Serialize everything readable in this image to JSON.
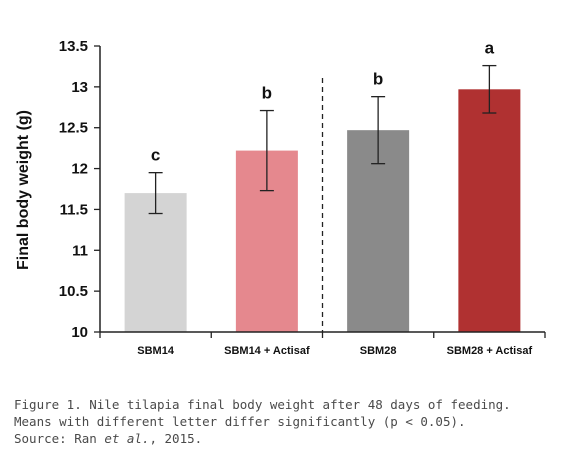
{
  "chart_data": {
    "type": "bar",
    "title": "",
    "xlabel": "",
    "ylabel": "Final body weight (g)",
    "ylim": [
      10,
      13.5
    ],
    "yticks": [
      "10",
      "10.5",
      "11",
      "11.5",
      "12",
      "12.5",
      "13",
      "13.5"
    ],
    "categories": [
      "SBM14",
      "SBM14 + Actisaf",
      "SBM28",
      "SBM28 + Actisaf"
    ],
    "values": [
      11.7,
      12.22,
      12.47,
      12.97
    ],
    "error_low": [
      11.45,
      11.73,
      12.06,
      12.68
    ],
    "error_high": [
      11.95,
      12.71,
      12.88,
      13.26
    ],
    "significance_letters": [
      "c",
      "b",
      "b",
      "a"
    ],
    "bar_colors": [
      "#d4d4d4",
      "#e5888e",
      "#8a8a8a",
      "#b03131"
    ],
    "divider_after_category": 1,
    "grid": false,
    "legend": "none"
  },
  "caption": {
    "line1": "Figure 1. Nile tilapia final body weight after 48 days of feeding.",
    "line2": "Means with different letter differ significantly (p < 0.05).",
    "line3_prefix": "Source: Ran ",
    "line3_italic": "et al.",
    "line3_suffix": ", 2015."
  }
}
